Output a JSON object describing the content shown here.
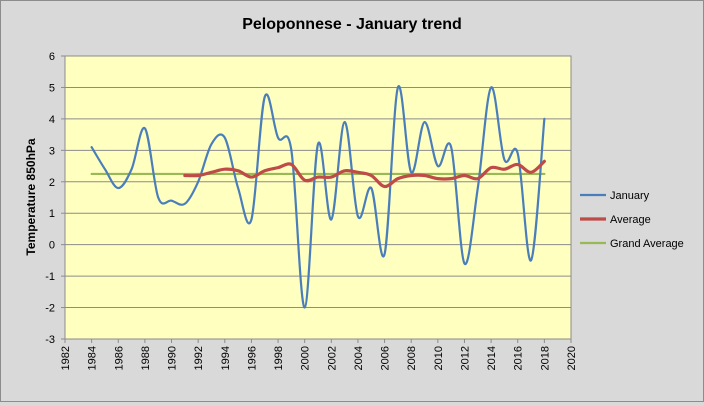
{
  "chart_data": {
    "type": "line",
    "title": "Peloponnese - January trend",
    "xlabel": "",
    "ylabel": "Temperature 850hPa",
    "xlim": [
      1982,
      2020
    ],
    "ylim": [
      -3,
      6
    ],
    "x_ticks": [
      "1982",
      "1984",
      "1986",
      "1988",
      "1990",
      "1992",
      "1994",
      "1996",
      "1998",
      "2000",
      "2002",
      "2004",
      "2006",
      "2008",
      "2010",
      "2012",
      "2014",
      "2016",
      "2018",
      "2020"
    ],
    "y_ticks": [
      "6",
      "5",
      "4",
      "3",
      "2",
      "1",
      "0",
      "-1",
      "-2",
      "-3"
    ],
    "grid": "horizontal",
    "legend_position": "right",
    "series": [
      {
        "name": "January",
        "color": "#4a7ebb",
        "smooth": true,
        "x": [
          1984,
          1985,
          1986,
          1987,
          1988,
          1989,
          1990,
          1991,
          1992,
          1993,
          1994,
          1995,
          1996,
          1997,
          1998,
          1999,
          2000,
          2001,
          2002,
          2003,
          2004,
          2005,
          2006,
          2007,
          2008,
          2009,
          2010,
          2011,
          2012,
          2013,
          2014,
          2015,
          2016,
          2017,
          2018
        ],
        "y": [
          3.1,
          2.4,
          1.8,
          2.4,
          3.7,
          1.5,
          1.4,
          1.3,
          2.0,
          3.2,
          3.4,
          1.8,
          0.8,
          4.7,
          3.4,
          3.0,
          -2.0,
          3.2,
          0.8,
          3.9,
          0.9,
          1.8,
          -0.3,
          5.0,
          2.3,
          3.9,
          2.5,
          3.1,
          -0.6,
          1.8,
          5.0,
          2.7,
          2.9,
          -0.5,
          4.0
        ]
      },
      {
        "name": "Average",
        "color": "#be4b48",
        "smooth": true,
        "x": [
          1991,
          1992,
          1993,
          1994,
          1995,
          1996,
          1997,
          1998,
          1999,
          2000,
          2001,
          2002,
          2003,
          2004,
          2005,
          2006,
          2007,
          2008,
          2009,
          2010,
          2011,
          2012,
          2013,
          2014,
          2015,
          2016,
          2017,
          2018
        ],
        "y": [
          2.2,
          2.2,
          2.3,
          2.4,
          2.35,
          2.15,
          2.35,
          2.45,
          2.55,
          2.05,
          2.15,
          2.15,
          2.35,
          2.3,
          2.2,
          1.85,
          2.1,
          2.2,
          2.2,
          2.1,
          2.1,
          2.2,
          2.1,
          2.45,
          2.4,
          2.55,
          2.3,
          2.65
        ]
      },
      {
        "name": "Grand Average",
        "color": "#98b954",
        "smooth": false,
        "x": [
          1984,
          2018
        ],
        "y": [
          2.25,
          2.25
        ]
      }
    ]
  }
}
